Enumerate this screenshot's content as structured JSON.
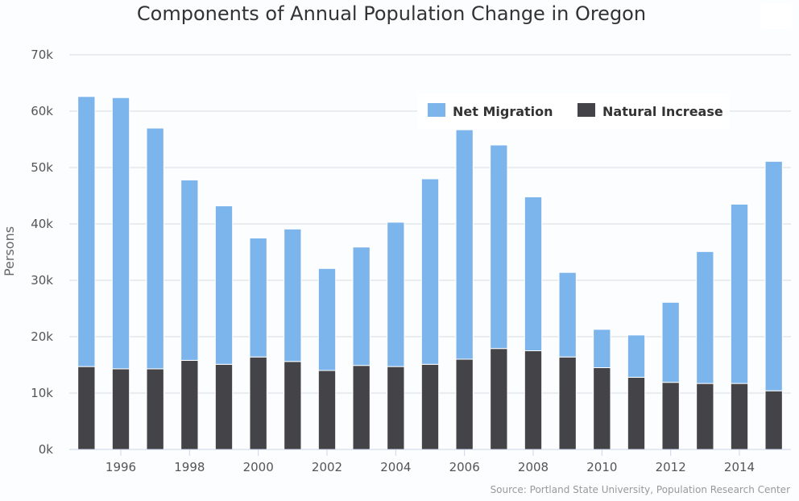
{
  "chart_data": {
    "type": "bar",
    "stacked": true,
    "title": "Components of Annual Population Change in Oregon",
    "xlabel": "",
    "ylabel": "Persons",
    "x": [
      1995,
      1996,
      1997,
      1998,
      1999,
      2000,
      2001,
      2002,
      2003,
      2004,
      2005,
      2006,
      2007,
      2008,
      2009,
      2010,
      2011,
      2012,
      2013,
      2014,
      2015
    ],
    "x_tick_labels": [
      "1996",
      "1998",
      "2000",
      "2002",
      "2004",
      "2006",
      "2008",
      "2010",
      "2012",
      "2014"
    ],
    "x_tick_values": [
      1996,
      1998,
      2000,
      2002,
      2004,
      2006,
      2008,
      2010,
      2012,
      2014
    ],
    "y_tick_labels": [
      "0k",
      "10k",
      "20k",
      "30k",
      "40k",
      "50k",
      "60k",
      "70k"
    ],
    "y_tick_values": [
      0,
      10000,
      20000,
      30000,
      40000,
      50000,
      60000,
      70000
    ],
    "ylim": [
      0,
      70000
    ],
    "grid": "horizontal",
    "legend_position": "top-right",
    "series": [
      {
        "name": "Natural Increase",
        "color": "#434348",
        "values": [
          14700,
          14300,
          14300,
          15800,
          15100,
          16400,
          15600,
          14000,
          14900,
          14700,
          15100,
          16000,
          17900,
          17500,
          16400,
          14500,
          12800,
          11900,
          11700,
          11700,
          10400
        ]
      },
      {
        "name": "Net Migration",
        "color": "#7cb5ec",
        "values": [
          47900,
          48100,
          42700,
          32000,
          28100,
          21100,
          23500,
          18100,
          21000,
          25600,
          32900,
          40700,
          36100,
          27300,
          15000,
          6800,
          7500,
          14200,
          23400,
          31800,
          40700
        ]
      }
    ],
    "legend_order": [
      "Net Migration",
      "Natural Increase"
    ],
    "credits": "Source: Portland State University, Population Research Center"
  }
}
